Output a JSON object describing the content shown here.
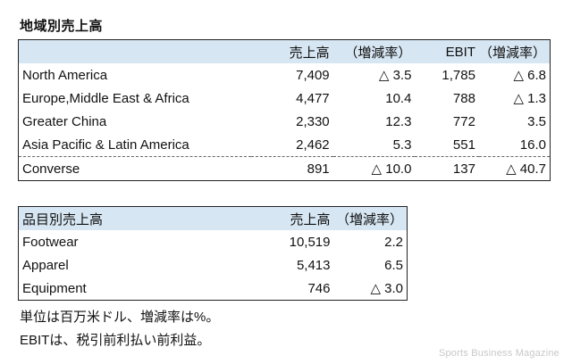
{
  "title": "地域別売上高",
  "region_table": {
    "headers": [
      "",
      "売上高",
      "（増減率）",
      "EBIT",
      "（増減率）"
    ],
    "rows": [
      {
        "label": "North America",
        "sales": "7,409",
        "sales_change": "△ 3.5",
        "ebit": "1,785",
        "ebit_change": "△ 6.8"
      },
      {
        "label": "Europe,Middle East & Africa",
        "sales": "4,477",
        "sales_change": "10.4",
        "ebit": "788",
        "ebit_change": "△ 1.3"
      },
      {
        "label": "Greater China",
        "sales": "2,330",
        "sales_change": "12.3",
        "ebit": "772",
        "ebit_change": "3.5"
      },
      {
        "label": "Asia Pacific & Latin America",
        "sales": "2,462",
        "sales_change": "5.3",
        "ebit": "551",
        "ebit_change": "16.0"
      },
      {
        "label": "Converse",
        "sales": "891",
        "sales_change": "△ 10.0",
        "ebit": "137",
        "ebit_change": "△ 40.7"
      }
    ]
  },
  "product_table": {
    "headers": [
      "品目別売上高",
      "売上高",
      "（増減率）"
    ],
    "rows": [
      {
        "label": "Footwear",
        "sales": "10,519",
        "sales_change": "2.2"
      },
      {
        "label": "Apparel",
        "sales": "5,413",
        "sales_change": "6.5"
      },
      {
        "label": "Equipment",
        "sales": "746",
        "sales_change": "△ 3.0"
      }
    ]
  },
  "notes": [
    "単位は百万米ドル、増減率は%。",
    "EBITは、税引前利払い前利益。"
  ],
  "watermark": "Sports Business Magazine",
  "colors": {
    "header_bg": "#d6e6f2",
    "border": "#222222",
    "watermark": "#c8c8c8"
  }
}
